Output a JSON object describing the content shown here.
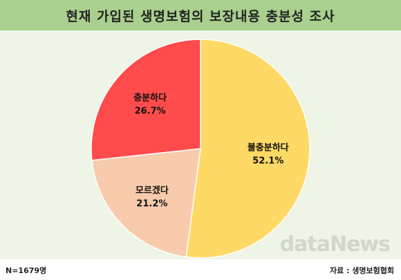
{
  "header": {
    "title": "현재 가입된 생명보험의 보장내용 충분성 조사"
  },
  "watermark": "dataNews",
  "footer": {
    "sample": "N=1679명",
    "source": "자료 : 생명보험협회"
  },
  "chart_data": {
    "type": "pie",
    "title": "현재 가입된 생명보험의 보장내용 충분성 조사",
    "slices": [
      {
        "label": "불충분하다",
        "value": 52.1,
        "value_text": "52.1%",
        "color": "#ffd966"
      },
      {
        "label": "모르겠다",
        "value": 21.2,
        "value_text": "21.2%",
        "color": "#f8cbad"
      },
      {
        "label": "충분하다",
        "value": 26.7,
        "value_text": "26.7%",
        "color": "#ff4b4b"
      }
    ],
    "start_angle": "12 o'clock",
    "direction": "clockwise",
    "legend": "none"
  }
}
